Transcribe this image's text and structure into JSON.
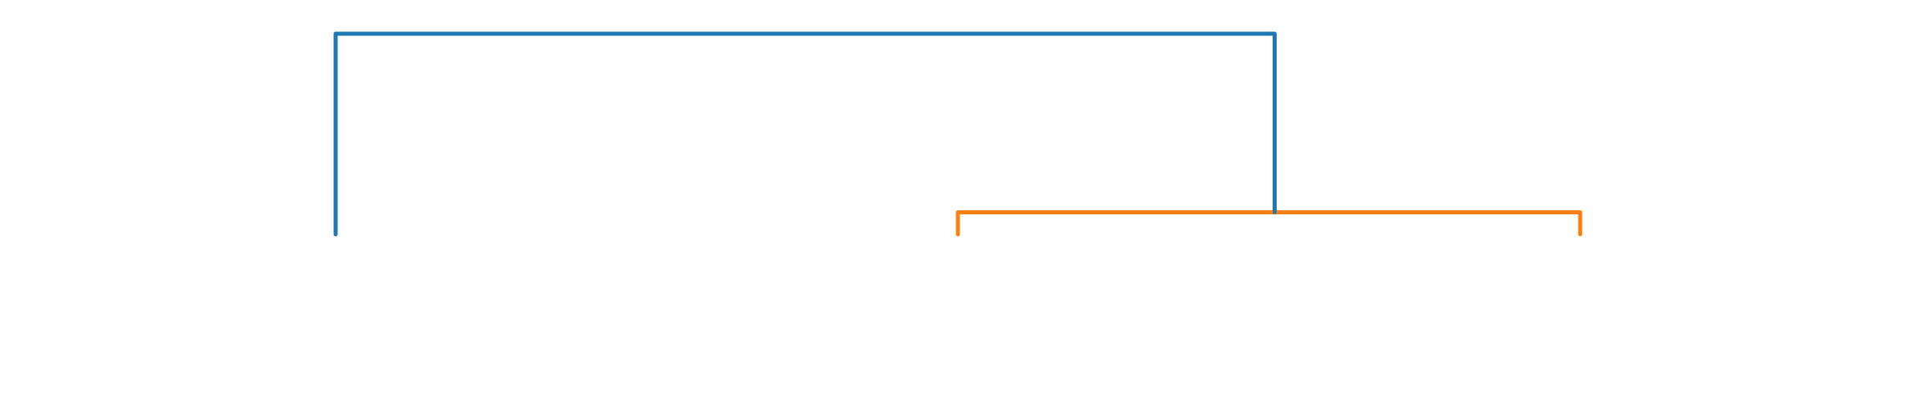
{
  "diagram": {
    "type": "dendrogram",
    "orientation": "top",
    "leaves": 3,
    "links": [
      {
        "id": "root-link",
        "left_child": "leaf-1",
        "right_child": "cluster-2-3",
        "color": "#1f77b4",
        "merge_height": 1.0
      },
      {
        "id": "cluster-link",
        "left_child": "leaf-2",
        "right_child": "leaf-3",
        "color": "#ff7f0e",
        "merge_height": 0.11
      }
    ],
    "labels_visible": false,
    "axes_visible": false
  }
}
